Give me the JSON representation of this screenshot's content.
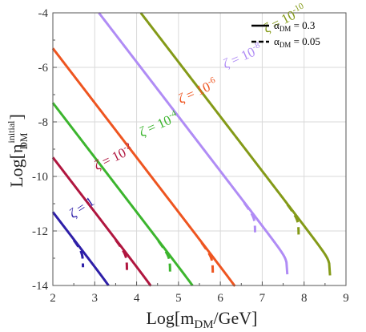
{
  "chart_data": {
    "type": "line",
    "xlabel": {
      "main": "Log[m",
      "sub": "DM",
      "tail": "/GeV]"
    },
    "ylabel": {
      "main": "Log[η",
      "sup": "initial",
      "sub": "DM",
      "tail": "]"
    },
    "xlim": [
      2,
      9
    ],
    "ylim": [
      -14,
      -4
    ],
    "xticks": [
      "2",
      "3",
      "4",
      "5",
      "6",
      "7",
      "8",
      "9"
    ],
    "yticks": [
      "-4",
      "-6",
      "-8",
      "-10",
      "-12",
      "-14"
    ],
    "grid": true,
    "legend": {
      "placement": "top-right",
      "entries": [
        {
          "symbol": "α",
          "sub": "DM",
          "value": " = 0.3",
          "style": "solid"
        },
        {
          "symbol": "α",
          "sub": "DM",
          "value": " = 0.05",
          "style": "dashed"
        }
      ]
    },
    "series": [
      {
        "name": "ζ = 1",
        "color": "#2e1fa8",
        "solid": {
          "x_start": 2.0,
          "y_start": -11.3,
          "x_vert": 3.5
        },
        "dashed": {
          "x_start": 2.5,
          "x_vert": 2.72
        }
      },
      {
        "name": "ζ = 10-2",
        "color": "#b0163f",
        "solid": {
          "x_start": 2.0,
          "y_start": -9.3,
          "x_vert": 4.55
        },
        "dashed": {
          "x_start": 3.5,
          "x_vert": 3.77
        }
      },
      {
        "name": "ζ = 10-4",
        "color": "#3cb52e",
        "solid": {
          "x_start": 2.0,
          "y_start": -7.3,
          "x_vert": 5.58
        },
        "dashed": {
          "x_start": 4.52,
          "x_vert": 4.8
        }
      },
      {
        "name": "ζ = 10-6",
        "color": "#ee5520",
        "solid": {
          "x_start": 2.0,
          "y_start": -5.3,
          "x_vert": 6.6
        },
        "dashed": {
          "x_start": 5.55,
          "x_vert": 5.82
        }
      },
      {
        "name": "ζ = 10-8",
        "color": "#b08cf5",
        "solid": {
          "x_start": 3.1,
          "y_start": -4.0,
          "x_vert": 7.6
        },
        "dashed": {
          "x_start": 6.57,
          "x_vert": 6.83
        }
      },
      {
        "name": "ζ = 10-10",
        "color": "#849a18",
        "solid": {
          "x_start": 4.1,
          "y_start": -4.0,
          "x_vert": 8.62
        },
        "dashed": {
          "x_start": 7.6,
          "x_vert": 7.87
        }
      }
    ],
    "annotations": [
      {
        "zeta": "ζ",
        "eq": " = ",
        "base": "1",
        "exp": "",
        "color": "#2e1fa8",
        "x": 2.48,
        "y": -11.55,
        "angle": -34
      },
      {
        "zeta": "ζ",
        "eq": " = ",
        "base": "10",
        "exp": "-2",
        "color": "#b0163f",
        "x": 3.05,
        "y": -9.78,
        "angle": -26
      },
      {
        "zeta": "ζ",
        "eq": " = ",
        "base": "10",
        "exp": "-4",
        "color": "#3cb52e",
        "x": 4.12,
        "y": -8.55,
        "angle": -24
      },
      {
        "zeta": "ζ",
        "eq": " = ",
        "base": "10",
        "exp": "-6",
        "color": "#ee5520",
        "x": 5.05,
        "y": -7.33,
        "angle": -24
      },
      {
        "zeta": "ζ",
        "eq": " = ",
        "base": "10",
        "exp": "-8",
        "color": "#b08cf5",
        "x": 6.12,
        "y": -6.05,
        "angle": -24
      },
      {
        "zeta": "ζ",
        "eq": " = ",
        "base": "10",
        "exp": "-10",
        "color": "#849a18",
        "x": 7.1,
        "y": -4.75,
        "angle": -27
      }
    ]
  }
}
